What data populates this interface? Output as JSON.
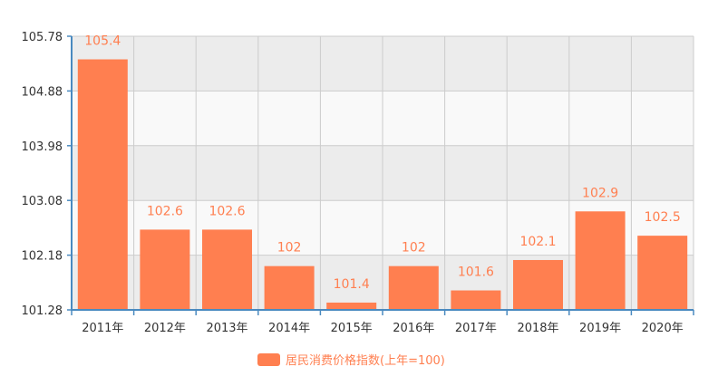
{
  "chart_data": {
    "type": "bar",
    "categories": [
      "2011年",
      "2012年",
      "2013年",
      "2014年",
      "2015年",
      "2016年",
      "2017年",
      "2018年",
      "2019年",
      "2020年"
    ],
    "series": [
      {
        "name": "居民消费价格指数(上年=100)",
        "values": [
          105.4,
          102.6,
          102.6,
          102,
          101.4,
          102,
          101.6,
          102.1,
          102.9,
          102.5
        ],
        "value_labels": [
          "105.4",
          "102.6",
          "102.6",
          "102",
          "101.4",
          "102",
          "101.6",
          "102.1",
          "102.9",
          "102.5"
        ]
      }
    ],
    "yticks": [
      "101.28",
      "102.18",
      "103.08",
      "103.98",
      "104.88",
      "105.78"
    ],
    "ylim": [
      101.28,
      105.78
    ],
    "grid": true,
    "legend_position": "bottom-center",
    "colors": {
      "bar": "#ff7f50",
      "label": "#ff7f50",
      "axis": "#4a8ac0",
      "band_dark": "#ececec",
      "band_light": "#f9f9f9",
      "grid": "#cccccc"
    }
  }
}
